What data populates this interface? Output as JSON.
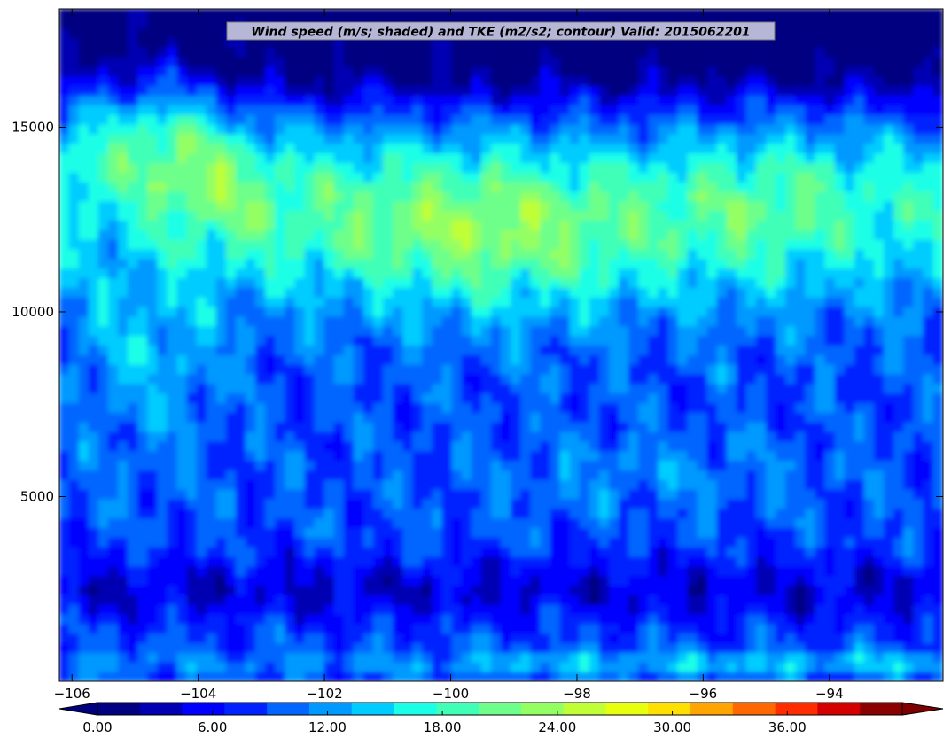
{
  "chart_data": {
    "type": "heatmap",
    "title": "Wind speed (m/s; shaded) and TKE (m2/s2; contour) Valid: 2015062201",
    "xlabel": "",
    "ylabel": "",
    "xlim": [
      -106.2,
      -92.2
    ],
    "ylim": [
      0,
      18200
    ],
    "x_ticks": [
      -106,
      -104,
      -102,
      -100,
      -98,
      -96,
      -94
    ],
    "x_tick_labels": [
      "−106",
      "−104",
      "−102",
      "−100",
      "−98",
      "−96",
      "−94"
    ],
    "y_ticks": [
      5000,
      10000,
      15000
    ],
    "y_tick_labels": [
      "5000",
      "10000",
      "15000"
    ],
    "colorbar": {
      "orientation": "horizontal",
      "extend": "both",
      "levels": [
        0,
        1.5,
        3,
        4.5,
        6,
        7.5,
        9,
        10.5,
        12,
        13.5,
        15,
        16.5,
        18,
        19.5,
        21,
        22.5,
        24,
        25.5,
        27,
        28.5,
        30,
        31.5,
        33,
        34.5,
        36,
        37.5,
        39,
        40.5,
        42
      ],
      "tick_values": [
        0,
        6,
        12,
        18,
        24,
        30,
        36
      ],
      "tick_labels": [
        "0.00",
        "6.00",
        "12.00",
        "18.00",
        "24.00",
        "30.00",
        "36.00"
      ],
      "colors": [
        "#000080",
        "#0000b2",
        "#0000ff",
        "#0022ff",
        "#0066ff",
        "#0099ff",
        "#00ccff",
        "#1affe6",
        "#40ffb7",
        "#6dff8a",
        "#94ff63",
        "#c0ff36",
        "#e8ff0f",
        "#ffe000",
        "#ffa400",
        "#ff6800",
        "#ff2c00",
        "#d40000",
        "#8b0000"
      ],
      "under_color": "#00007f",
      "over_color": "#7f0000"
    },
    "field_description": "Filled contours of wind speed vs longitude and height; jet maximum near 12000-13500 at -101 to -97",
    "grid": false
  }
}
